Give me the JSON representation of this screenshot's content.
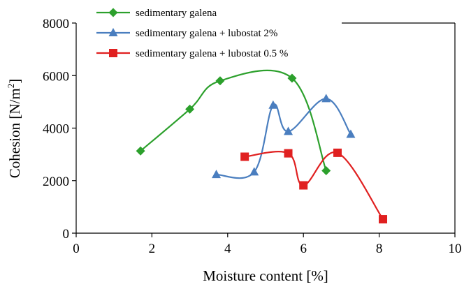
{
  "chart_data": {
    "type": "line",
    "xlabel": "Moisture content [%]",
    "ylabel_main": "Cohesion [N/m",
    "ylabel_sup": "2",
    "ylabel_close": "]",
    "xlim": [
      0,
      10
    ],
    "ylim": [
      0,
      8000
    ],
    "xticks": [
      0,
      2,
      4,
      6,
      8,
      10
    ],
    "yticks": [
      0,
      2000,
      4000,
      6000,
      8000
    ],
    "grid": false,
    "legend_position": "top",
    "series": [
      {
        "name": "sedimentary galena",
        "color": "#2ca02c",
        "marker": "diamond",
        "points": [
          [
            1.7,
            3130
          ],
          [
            3.0,
            4720
          ],
          [
            3.8,
            5800
          ],
          [
            5.7,
            5900
          ],
          [
            6.6,
            2380
          ]
        ]
      },
      {
        "name": "sedimentary galena + lubostat 2%",
        "color": "#4a7ebf",
        "marker": "triangle",
        "points": [
          [
            3.7,
            2230
          ],
          [
            4.7,
            2330
          ],
          [
            5.2,
            4870
          ],
          [
            5.6,
            3870
          ],
          [
            6.6,
            5120
          ],
          [
            7.25,
            3760
          ]
        ]
      },
      {
        "name": "sedimentary galena + lubostat 0.5 %",
        "color": "#e02020",
        "marker": "square",
        "points": [
          [
            4.45,
            2910
          ],
          [
            5.6,
            3040
          ],
          [
            6.0,
            1820
          ],
          [
            6.9,
            3060
          ],
          [
            8.1,
            530
          ]
        ]
      }
    ]
  }
}
